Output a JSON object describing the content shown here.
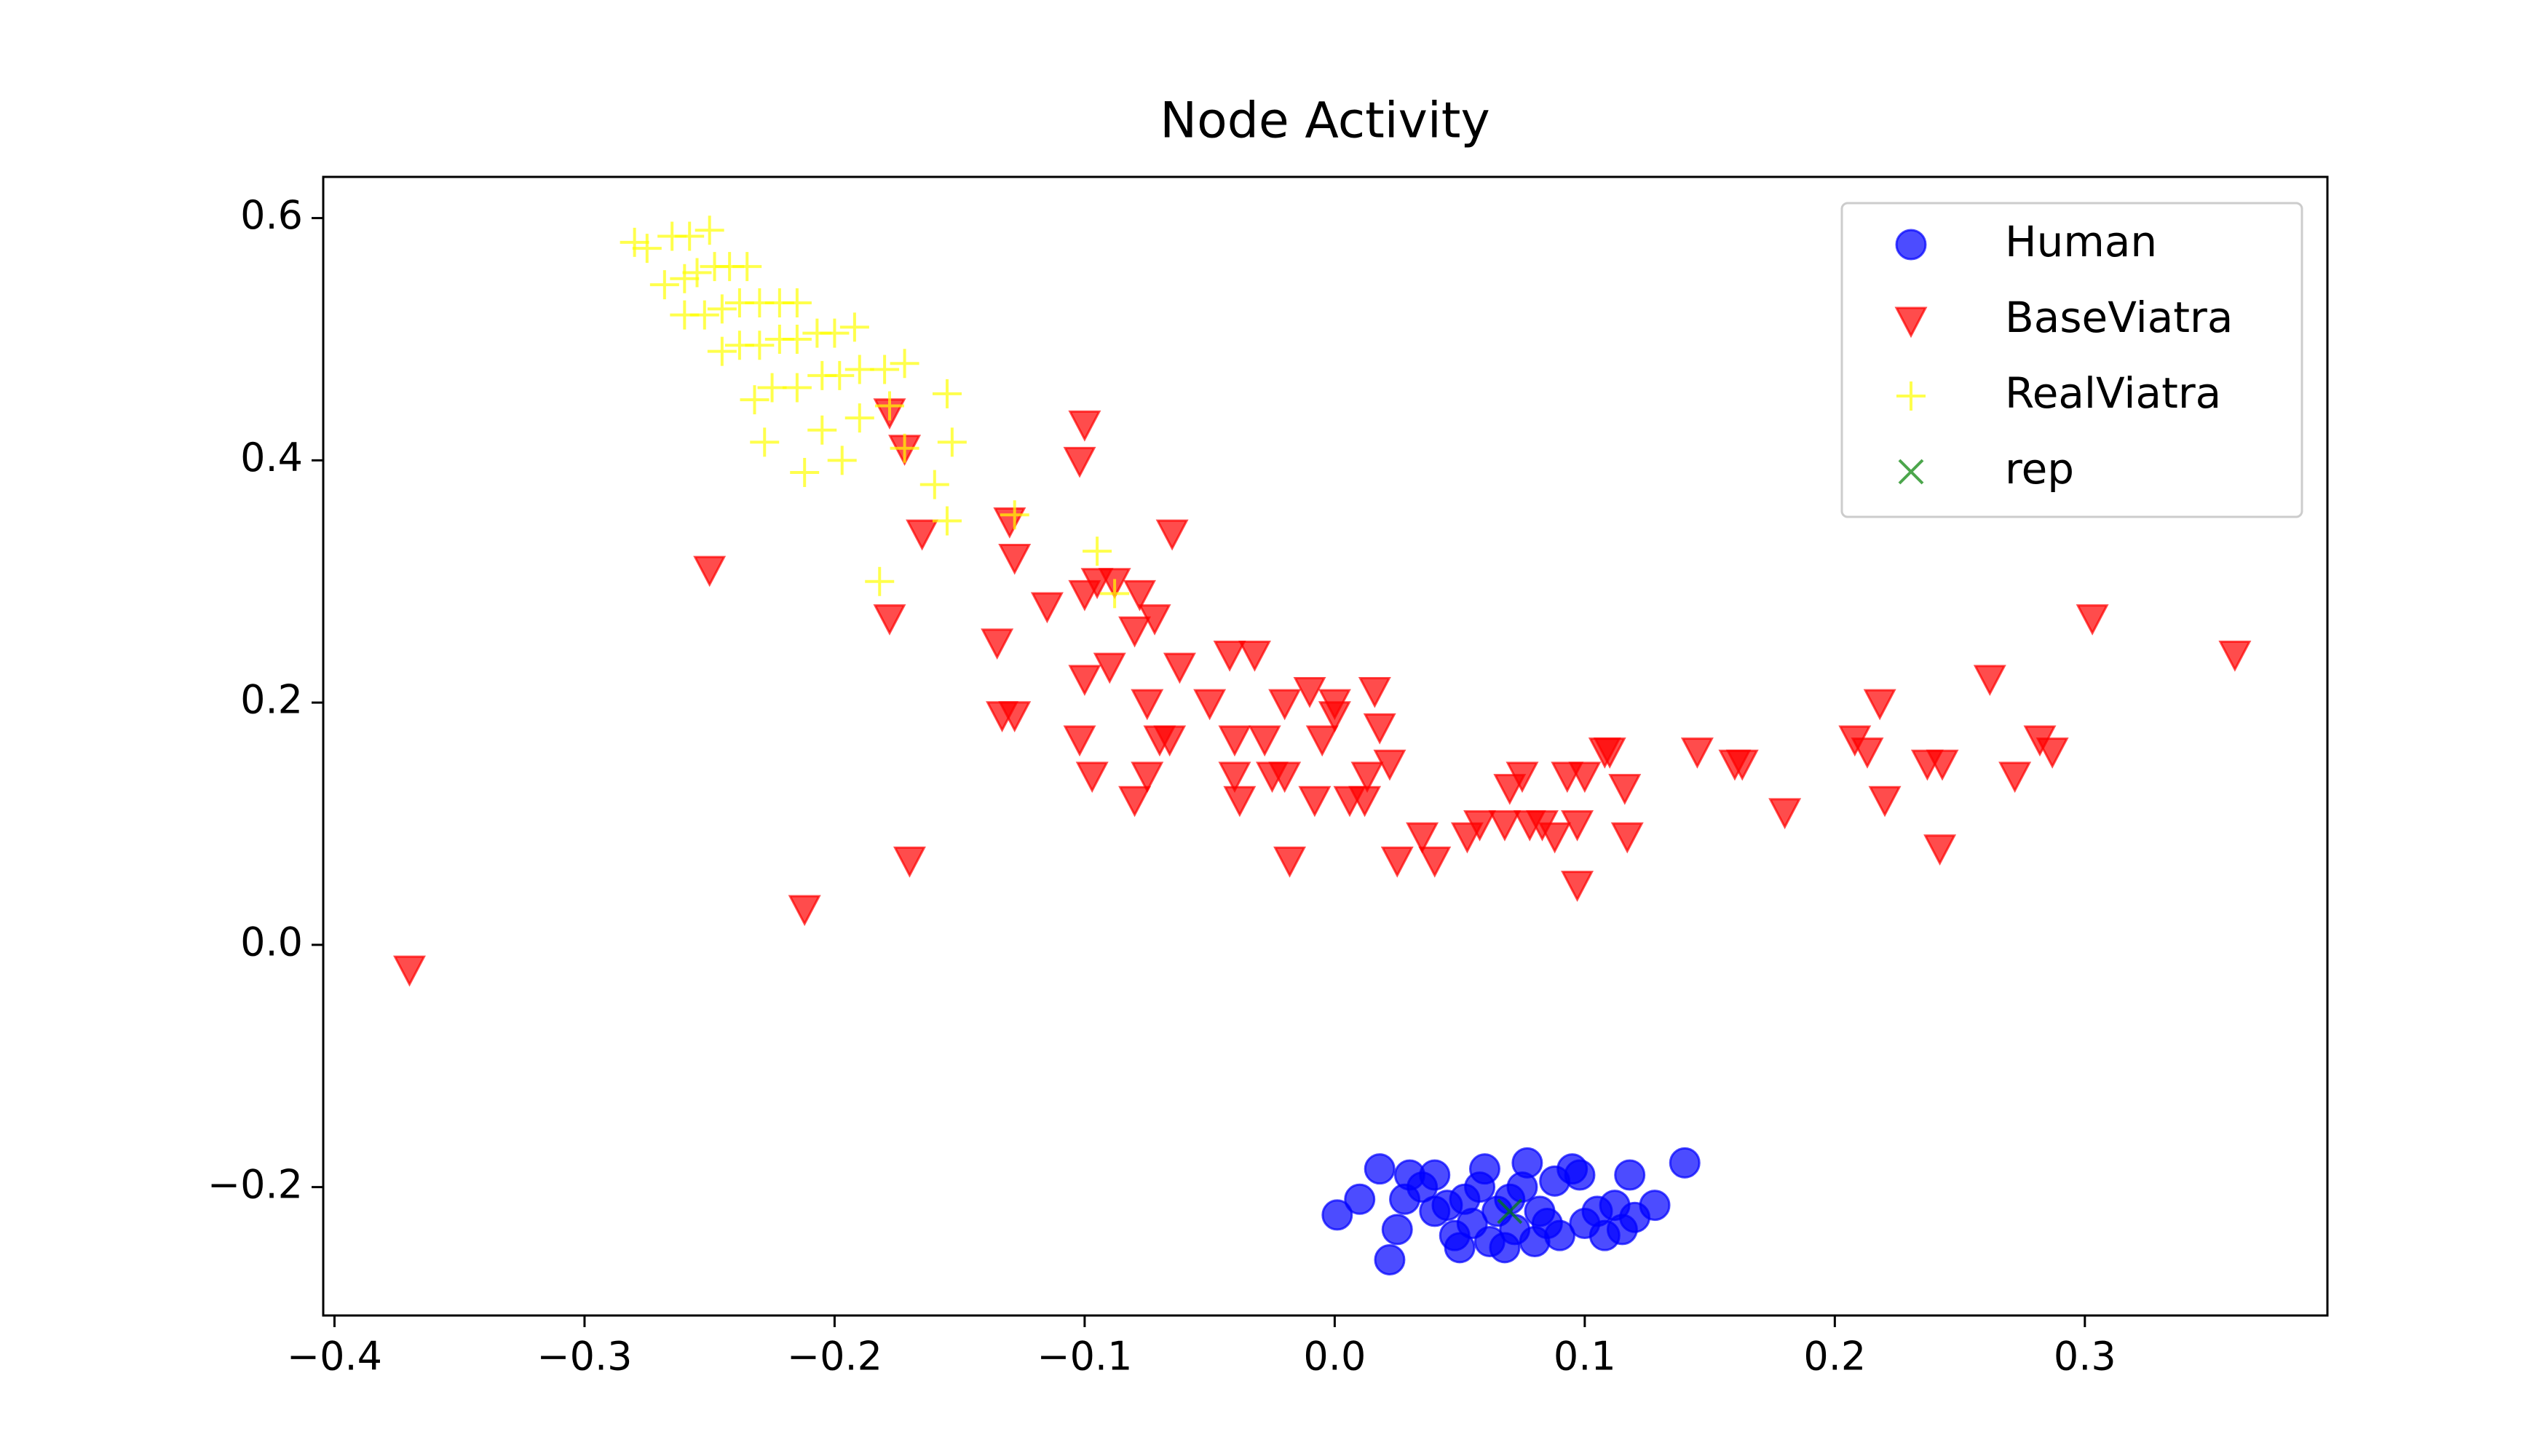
{
  "chart_data": {
    "type": "scatter",
    "title": "Node Activity",
    "xlim": [
      -0.4045,
      0.397
    ],
    "ylim": [
      -0.306,
      0.634
    ],
    "xticks": [
      {
        "value": -0.4,
        "label": "−0.4"
      },
      {
        "value": -0.3,
        "label": "−0.3"
      },
      {
        "value": -0.2,
        "label": "−0.2"
      },
      {
        "value": -0.1,
        "label": "−0.1"
      },
      {
        "value": 0,
        "label": "0.0"
      },
      0.1,
      0.2,
      0.3
    ],
    "yticks": [
      {
        "value": -0.2,
        "label": "−0.2"
      },
      {
        "value": 0,
        "label": "0.0"
      },
      0.2,
      0.4,
      0.6
    ],
    "legend": "upper right",
    "alpha": 0.7,
    "series": [
      {
        "name": "Human",
        "color": "#0000ff",
        "marker": "o",
        "x": [
          0.001,
          0.01,
          0.018,
          0.022,
          0.025,
          0.028,
          0.03,
          0.035,
          0.04,
          0.045,
          0.048,
          0.05,
          0.055,
          0.058,
          0.06,
          0.062,
          0.065,
          0.068,
          0.07,
          0.072,
          0.075,
          0.077,
          0.08,
          0.082,
          0.085,
          0.088,
          0.09,
          0.095,
          0.098,
          0.1,
          0.105,
          0.108,
          0.112,
          0.115,
          0.118,
          0.12,
          0.128,
          0.14,
          0.052,
          0.04
        ],
        "values": [
          -0.223,
          -0.21,
          -0.185,
          -0.26,
          -0.235,
          -0.21,
          -0.19,
          -0.2,
          -0.19,
          -0.215,
          -0.24,
          -0.25,
          -0.23,
          -0.2,
          -0.185,
          -0.245,
          -0.22,
          -0.25,
          -0.21,
          -0.235,
          -0.2,
          -0.18,
          -0.245,
          -0.22,
          -0.23,
          -0.195,
          -0.24,
          -0.185,
          -0.19,
          -0.23,
          -0.22,
          -0.24,
          -0.215,
          -0.235,
          -0.19,
          -0.225,
          -0.215,
          -0.18,
          -0.21,
          -0.22
        ]
      },
      {
        "name": "BaseViatra",
        "color": "#ff0000",
        "marker": "v",
        "x": [
          -0.37,
          -0.25,
          -0.212,
          -0.17,
          -0.178,
          -0.172,
          -0.165,
          -0.178,
          -0.13,
          -0.128,
          -0.135,
          -0.133,
          -0.128,
          -0.115,
          -0.1,
          -0.102,
          -0.1,
          -0.095,
          -0.088,
          -0.078,
          -0.065,
          -0.09,
          -0.1,
          -0.102,
          -0.097,
          -0.08,
          -0.072,
          -0.062,
          -0.075,
          -0.07,
          -0.066,
          -0.075,
          -0.08,
          -0.05,
          -0.042,
          -0.032,
          -0.04,
          -0.04,
          -0.038,
          -0.028,
          -0.025,
          -0.02,
          -0.02,
          -0.01,
          -0.005,
          -0.008,
          -0.018,
          0.0,
          0.0,
          0.006,
          0.012,
          0.013,
          0.018,
          0.022,
          0.016,
          0.025,
          0.035,
          0.04,
          0.053,
          0.058,
          0.068,
          0.07,
          0.075,
          0.078,
          0.083,
          0.088,
          0.093,
          0.097,
          0.1,
          0.097,
          0.108,
          0.11,
          0.116,
          0.117,
          0.145,
          0.16,
          0.163,
          0.18,
          0.208,
          0.213,
          0.218,
          0.22,
          0.237,
          0.243,
          0.242,
          0.262,
          0.272,
          0.282,
          0.287,
          0.303,
          0.36
        ],
        "values": [
          -0.02,
          0.31,
          0.03,
          0.07,
          0.44,
          0.41,
          0.34,
          0.27,
          0.35,
          0.32,
          0.25,
          0.19,
          0.19,
          0.28,
          0.43,
          0.4,
          0.29,
          0.3,
          0.3,
          0.29,
          0.34,
          0.23,
          0.22,
          0.17,
          0.14,
          0.26,
          0.27,
          0.23,
          0.2,
          0.17,
          0.17,
          0.14,
          0.12,
          0.2,
          0.24,
          0.24,
          0.17,
          0.14,
          0.12,
          0.17,
          0.14,
          0.14,
          0.2,
          0.21,
          0.17,
          0.12,
          0.07,
          0.2,
          0.19,
          0.12,
          0.12,
          0.14,
          0.18,
          0.15,
          0.21,
          0.07,
          0.09,
          0.07,
          0.09,
          0.1,
          0.1,
          0.13,
          0.14,
          0.1,
          0.1,
          0.09,
          0.14,
          0.1,
          0.14,
          0.05,
          0.16,
          0.16,
          0.13,
          0.09,
          0.16,
          0.15,
          0.15,
          0.11,
          0.17,
          0.16,
          0.2,
          0.12,
          0.15,
          0.15,
          0.08,
          0.22,
          0.14,
          0.17,
          0.16,
          0.27,
          0.24
        ]
      },
      {
        "name": "RealViatra",
        "color": "#ffff00",
        "marker": "+",
        "x": [
          -0.28,
          -0.275,
          -0.265,
          -0.258,
          -0.25,
          -0.268,
          -0.26,
          -0.255,
          -0.248,
          -0.242,
          -0.235,
          -0.26,
          -0.252,
          -0.245,
          -0.238,
          -0.23,
          -0.222,
          -0.215,
          -0.245,
          -0.238,
          -0.23,
          -0.222,
          -0.215,
          -0.207,
          -0.2,
          -0.192,
          -0.232,
          -0.225,
          -0.215,
          -0.205,
          -0.198,
          -0.19,
          -0.18,
          -0.172,
          -0.228,
          -0.212,
          -0.205,
          -0.197,
          -0.19,
          -0.178,
          -0.172,
          -0.155,
          -0.153,
          -0.16,
          -0.155,
          -0.182,
          -0.128,
          -0.095,
          -0.088
        ],
        "values": [
          0.58,
          0.575,
          0.585,
          0.585,
          0.59,
          0.545,
          0.55,
          0.555,
          0.56,
          0.56,
          0.56,
          0.52,
          0.52,
          0.525,
          0.53,
          0.53,
          0.53,
          0.53,
          0.49,
          0.495,
          0.495,
          0.5,
          0.5,
          0.505,
          0.505,
          0.51,
          0.45,
          0.46,
          0.46,
          0.47,
          0.47,
          0.475,
          0.475,
          0.48,
          0.415,
          0.39,
          0.425,
          0.4,
          0.435,
          0.445,
          0.41,
          0.455,
          0.415,
          0.38,
          0.35,
          0.3,
          0.355,
          0.325,
          0.29
        ]
      },
      {
        "name": "rep",
        "color": "#008000",
        "marker": "x",
        "x": [
          0.07
        ],
        "values": [
          -0.22
        ]
      }
    ]
  }
}
